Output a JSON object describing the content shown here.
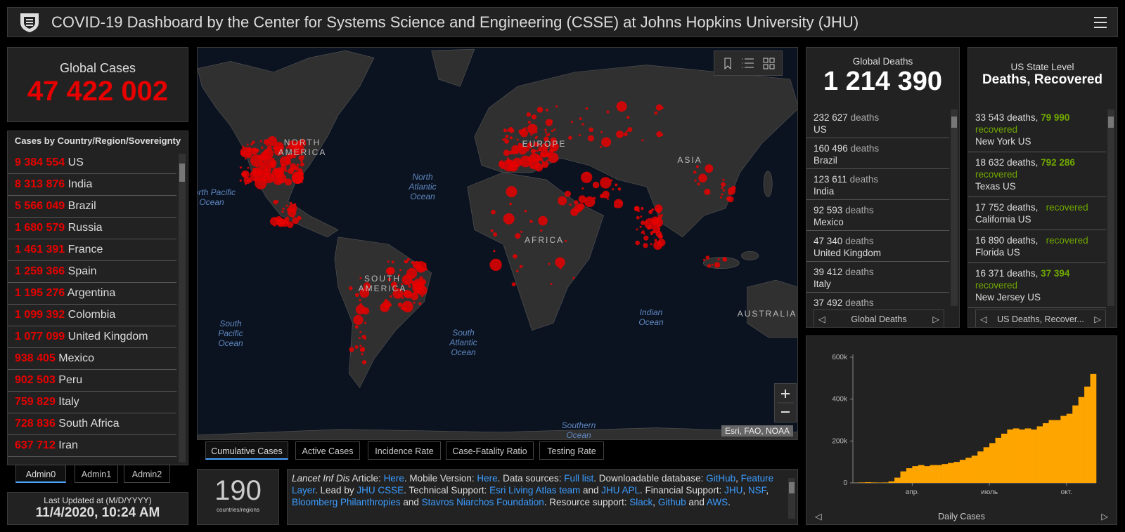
{
  "header": {
    "title": "COVID-19 Dashboard by the Center for Systems Science and Engineering (CSSE) at Johns Hopkins University (JHU)"
  },
  "global_cases": {
    "label": "Global Cases",
    "value": "47 422 002"
  },
  "country_list": {
    "title": "Cases by Country/Region/Sovereignty",
    "items": [
      {
        "value": "9 384 554",
        "name": "US"
      },
      {
        "value": "8 313 876",
        "name": "India"
      },
      {
        "value": "5 566 049",
        "name": "Brazil"
      },
      {
        "value": "1 680 579",
        "name": "Russia"
      },
      {
        "value": "1 461 391",
        "name": "France"
      },
      {
        "value": "1 259 366",
        "name": "Spain"
      },
      {
        "value": "1 195 276",
        "name": "Argentina"
      },
      {
        "value": "1 099 392",
        "name": "Colombia"
      },
      {
        "value": "1 077 099",
        "name": "United Kingdom"
      },
      {
        "value": "938 405",
        "name": "Mexico"
      },
      {
        "value": "902 503",
        "name": "Peru"
      },
      {
        "value": "759 829",
        "name": "Italy"
      },
      {
        "value": "728 836",
        "name": "South Africa"
      },
      {
        "value": "637 712",
        "name": "Iran"
      }
    ]
  },
  "admin_tabs": [
    "Admin0",
    "Admin1",
    "Admin2"
  ],
  "last_updated": {
    "label": "Last Updated at (M/D/YYYY)",
    "value": "11/4/2020, 10:24 AM"
  },
  "map": {
    "labels": [
      "NORTH AMERICA",
      "North Pacific Ocean",
      "North Atlantic Ocean",
      "EUROPE",
      "ASIA",
      "AFRICA",
      "SOUTH AMERICA",
      "South Pacific Ocean",
      "South Atlantic Ocean",
      "Indian Ocean",
      "AUSTRALIA",
      "Southern Ocean"
    ],
    "attribution": "Esri, FAO, NOAA"
  },
  "map_tabs": [
    "Cumulative Cases",
    "Active Cases",
    "Incidence Rate",
    "Case-Fatality Ratio",
    "Testing Rate"
  ],
  "count": {
    "value": 190,
    "label": "countries/regions"
  },
  "info": {
    "segments": [
      {
        "em": "Lancet Inf Dis"
      },
      " Article: ",
      {
        "link": "Here"
      },
      ". Mobile Version: ",
      {
        "link": "Here"
      },
      ". Data sources: ",
      {
        "link": "Full list"
      },
      ". Downloadable database: ",
      {
        "link": "GitHub"
      },
      ", ",
      {
        "link": "Feature Layer"
      },
      ". Lead by ",
      {
        "link": "JHU CSSE"
      },
      ". Technical Support: ",
      {
        "link": "Esri Living Atlas team"
      },
      " and ",
      {
        "link": "JHU APL"
      },
      ". Financial Support: ",
      {
        "link": "JHU"
      },
      ", ",
      {
        "link": "NSF"
      },
      ", ",
      {
        "link": "Bloomberg Philanthropies"
      },
      " and ",
      {
        "link": "Stavros Niarchos Foundation"
      },
      ". Resource support: ",
      {
        "link": "Slack"
      },
      ", ",
      {
        "link": "Github"
      },
      " and ",
      {
        "link": "AWS"
      },
      "."
    ]
  },
  "global_deaths": {
    "label": "Global Deaths",
    "value": "1 214 390",
    "unit": "deaths",
    "items": [
      {
        "value": "232 627",
        "name": "US"
      },
      {
        "value": "160 496",
        "name": "Brazil"
      },
      {
        "value": "123 611",
        "name": "India"
      },
      {
        "value": "92 593",
        "name": "Mexico"
      },
      {
        "value": "47 340",
        "name": "United Kingdom"
      },
      {
        "value": "39 412",
        "name": "Italy"
      },
      {
        "value": "37 492"
      }
    ],
    "nav": "Global Deaths"
  },
  "us_state": {
    "title": "US State Level",
    "subtitle": "Deaths, Recovered",
    "deaths_word": "deaths,",
    "recovered_word": "recovered",
    "items": [
      {
        "deaths": "33 543",
        "recovered": "79 990",
        "name": "New York US"
      },
      {
        "deaths": "18 632",
        "recovered": "792 286",
        "name": "Texas US"
      },
      {
        "deaths": "17 752",
        "name": "California US"
      },
      {
        "deaths": "16 890",
        "name": "Florida US"
      },
      {
        "deaths": "16 371",
        "recovered": "37 394",
        "name": "New Jersey US"
      }
    ],
    "nav": "US Deaths, Recover..."
  },
  "chart_data": {
    "type": "bar",
    "title": "Daily Cases",
    "color": "#ffa500",
    "values": [
      500,
      2000,
      3000,
      2000,
      1500,
      2000,
      7000,
      25000,
      55000,
      70000,
      80000,
      85000,
      80000,
      85000,
      85000,
      90000,
      95000,
      100000,
      110000,
      120000,
      130000,
      150000,
      170000,
      190000,
      215000,
      235000,
      255000,
      260000,
      255000,
      260000,
      255000,
      270000,
      285000,
      300000,
      300000,
      320000,
      330000,
      370000,
      410000,
      460000,
      520000
    ],
    "xlim": [
      0,
      41
    ],
    "xticks": [
      {
        "value": 10,
        "label": "апр."
      },
      {
        "value": 23,
        "label": "июль"
      },
      {
        "value": 36,
        "label": "окт."
      }
    ],
    "ylim": [
      0,
      600000
    ],
    "yticks": [
      0,
      {
        "value": 200000,
        "label": "200k"
      },
      {
        "value": 400000,
        "label": "400k"
      },
      {
        "value": 600000,
        "label": "600k"
      }
    ]
  }
}
